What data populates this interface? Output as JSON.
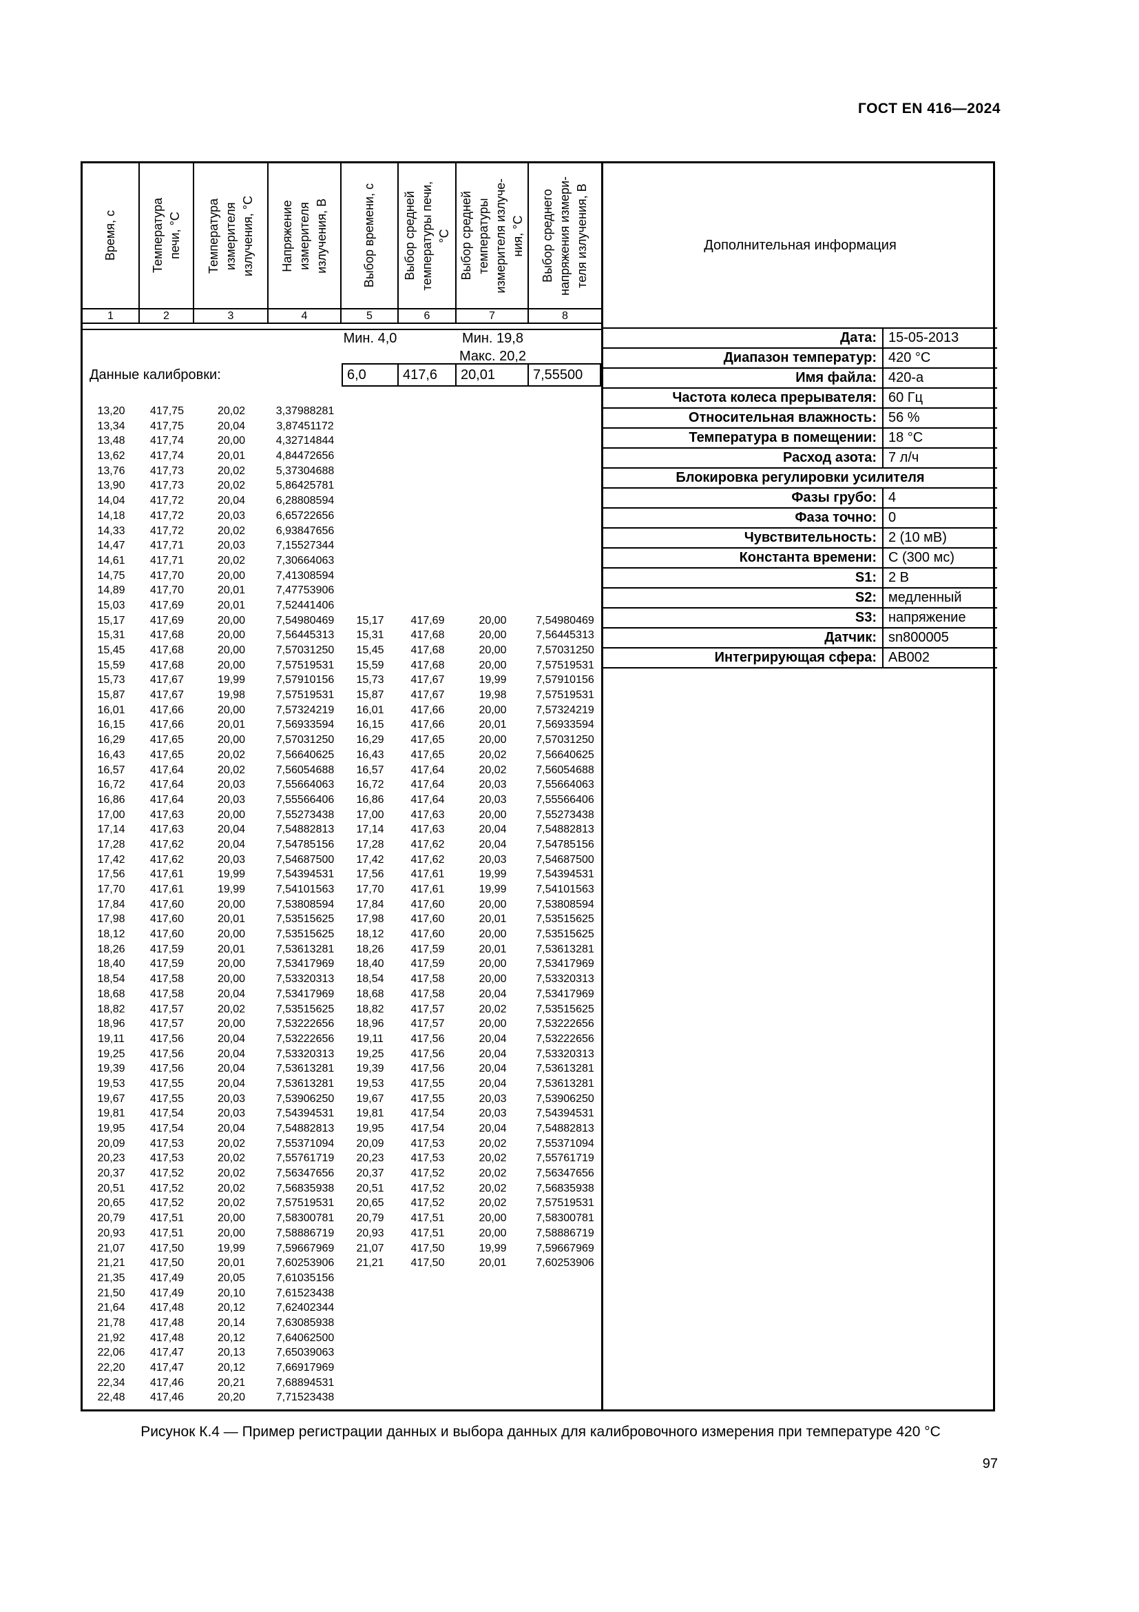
{
  "page": {
    "doc_header": "ГОСТ EN 416—2024",
    "caption": "Рисунок К.4  — Пример регистрации данных и выбора данных для калибровочного измерения при температуре 420 °С",
    "page_number": "97"
  },
  "table": {
    "columns": [
      {
        "num": "1",
        "label": "Время, с"
      },
      {
        "num": "2",
        "label": "Температура\nпечи, °С"
      },
      {
        "num": "3",
        "label": "Температура\nизмерителя\nизлучения, °С"
      },
      {
        "num": "4",
        "label": "Напряжение\nизмерителя\nизлучения, В"
      },
      {
        "num": "5",
        "label": "Выбор времени, с"
      },
      {
        "num": "6",
        "label": "Выбор средней\nтемпературы печи,\n°С"
      },
      {
        "num": "7",
        "label": "Выбор средней\nтемпературы\nизмерителя излуче-\nния, °С"
      },
      {
        "num": "8",
        "label": "Выбор среднего\nнапряжения измери-\nтеля излучения, В"
      }
    ],
    "extra_col_label": "Дополнительная информация",
    "annotations": {
      "min_time": "Мин. 4,0",
      "min_temp": "Мин. 19,8",
      "max_temp": "Макс. 20,2"
    },
    "calibration_label": "Данные калибровки:",
    "calibration_values": [
      "6,0",
      "417,6",
      "20,01",
      "7,55500"
    ],
    "rows": [
      [
        "13,20",
        "417,75",
        "20,02",
        "3,37988281"
      ],
      [
        "13,34",
        "417,75",
        "20,04",
        "3,87451172"
      ],
      [
        "13,48",
        "417,74",
        "20,00",
        "4,32714844"
      ],
      [
        "13,62",
        "417,74",
        "20,01",
        "4,84472656"
      ],
      [
        "13,76",
        "417,73",
        "20,02",
        "5,37304688"
      ],
      [
        "13,90",
        "417,73",
        "20,02",
        "5,86425781"
      ],
      [
        "14,04",
        "417,72",
        "20,04",
        "6,28808594"
      ],
      [
        "14,18",
        "417,72",
        "20,03",
        "6,65722656"
      ],
      [
        "14,33",
        "417,72",
        "20,02",
        "6,93847656"
      ],
      [
        "14,47",
        "417,71",
        "20,03",
        "7,15527344"
      ],
      [
        "14,61",
        "417,71",
        "20,02",
        "7,30664063"
      ],
      [
        "14,75",
        "417,70",
        "20,00",
        "7,41308594"
      ],
      [
        "14,89",
        "417,70",
        "20,01",
        "7,47753906"
      ],
      [
        "15,03",
        "417,69",
        "20,01",
        "7,52441406"
      ],
      [
        "15,17",
        "417,69",
        "20,00",
        "7,54980469",
        "15,17",
        "417,69",
        "20,00",
        "7,54980469"
      ],
      [
        "15,31",
        "417,68",
        "20,00",
        "7,56445313",
        "15,31",
        "417,68",
        "20,00",
        "7,56445313"
      ],
      [
        "15,45",
        "417,68",
        "20,00",
        "7,57031250",
        "15,45",
        "417,68",
        "20,00",
        "7,57031250"
      ],
      [
        "15,59",
        "417,68",
        "20,00",
        "7,57519531",
        "15,59",
        "417,68",
        "20,00",
        "7,57519531"
      ],
      [
        "15,73",
        "417,67",
        "19,99",
        "7,57910156",
        "15,73",
        "417,67",
        "19,99",
        "7,57910156"
      ],
      [
        "15,87",
        "417,67",
        "19,98",
        "7,57519531",
        "15,87",
        "417,67",
        "19,98",
        "7,57519531"
      ],
      [
        "16,01",
        "417,66",
        "20,00",
        "7,57324219",
        "16,01",
        "417,66",
        "20,00",
        "7,57324219"
      ],
      [
        "16,15",
        "417,66",
        "20,01",
        "7,56933594",
        "16,15",
        "417,66",
        "20,01",
        "7,56933594"
      ],
      [
        "16,29",
        "417,65",
        "20,00",
        "7,57031250",
        "16,29",
        "417,65",
        "20,00",
        "7,57031250"
      ],
      [
        "16,43",
        "417,65",
        "20,02",
        "7,56640625",
        "16,43",
        "417,65",
        "20,02",
        "7,56640625"
      ],
      [
        "16,57",
        "417,64",
        "20,02",
        "7,56054688",
        "16,57",
        "417,64",
        "20,02",
        "7,56054688"
      ],
      [
        "16,72",
        "417,64",
        "20,03",
        "7,55664063",
        "16,72",
        "417,64",
        "20,03",
        "7,55664063"
      ],
      [
        "16,86",
        "417,64",
        "20,03",
        "7,55566406",
        "16,86",
        "417,64",
        "20,03",
        "7,55566406"
      ],
      [
        "17,00",
        "417,63",
        "20,00",
        "7,55273438",
        "17,00",
        "417,63",
        "20,00",
        "7,55273438"
      ],
      [
        "17,14",
        "417,63",
        "20,04",
        "7,54882813",
        "17,14",
        "417,63",
        "20,04",
        "7,54882813"
      ],
      [
        "17,28",
        "417,62",
        "20,04",
        "7,54785156",
        "17,28",
        "417,62",
        "20,04",
        "7,54785156"
      ],
      [
        "17,42",
        "417,62",
        "20,03",
        "7,54687500",
        "17,42",
        "417,62",
        "20,03",
        "7,54687500"
      ],
      [
        "17,56",
        "417,61",
        "19,99",
        "7,54394531",
        "17,56",
        "417,61",
        "19,99",
        "7,54394531"
      ],
      [
        "17,70",
        "417,61",
        "19,99",
        "7,54101563",
        "17,70",
        "417,61",
        "19,99",
        "7,54101563"
      ],
      [
        "17,84",
        "417,60",
        "20,00",
        "7,53808594",
        "17,84",
        "417,60",
        "20,00",
        "7,53808594"
      ],
      [
        "17,98",
        "417,60",
        "20,01",
        "7,53515625",
        "17,98",
        "417,60",
        "20,01",
        "7,53515625"
      ],
      [
        "18,12",
        "417,60",
        "20,00",
        "7,53515625",
        "18,12",
        "417,60",
        "20,00",
        "7,53515625"
      ],
      [
        "18,26",
        "417,59",
        "20,01",
        "7,53613281",
        "18,26",
        "417,59",
        "20,01",
        "7,53613281"
      ],
      [
        "18,40",
        "417,59",
        "20,00",
        "7,53417969",
        "18,40",
        "417,59",
        "20,00",
        "7,53417969"
      ],
      [
        "18,54",
        "417,58",
        "20,00",
        "7,53320313",
        "18,54",
        "417,58",
        "20,00",
        "7,53320313"
      ],
      [
        "18,68",
        "417,58",
        "20,04",
        "7,53417969",
        "18,68",
        "417,58",
        "20,04",
        "7,53417969"
      ],
      [
        "18,82",
        "417,57",
        "20,02",
        "7,53515625",
        "18,82",
        "417,57",
        "20,02",
        "7,53515625"
      ],
      [
        "18,96",
        "417,57",
        "20,00",
        "7,53222656",
        "18,96",
        "417,57",
        "20,00",
        "7,53222656"
      ],
      [
        "19,11",
        "417,56",
        "20,04",
        "7,53222656",
        "19,11",
        "417,56",
        "20,04",
        "7,53222656"
      ],
      [
        "19,25",
        "417,56",
        "20,04",
        "7,53320313",
        "19,25",
        "417,56",
        "20,04",
        "7,53320313"
      ],
      [
        "19,39",
        "417,56",
        "20,04",
        "7,53613281",
        "19,39",
        "417,56",
        "20,04",
        "7,53613281"
      ],
      [
        "19,53",
        "417,55",
        "20,04",
        "7,53613281",
        "19,53",
        "417,55",
        "20,04",
        "7,53613281"
      ],
      [
        "19,67",
        "417,55",
        "20,03",
        "7,53906250",
        "19,67",
        "417,55",
        "20,03",
        "7,53906250"
      ],
      [
        "19,81",
        "417,54",
        "20,03",
        "7,54394531",
        "19,81",
        "417,54",
        "20,03",
        "7,54394531"
      ],
      [
        "19,95",
        "417,54",
        "20,04",
        "7,54882813",
        "19,95",
        "417,54",
        "20,04",
        "7,54882813"
      ],
      [
        "20,09",
        "417,53",
        "20,02",
        "7,55371094",
        "20,09",
        "417,53",
        "20,02",
        "7,55371094"
      ],
      [
        "20,23",
        "417,53",
        "20,02",
        "7,55761719",
        "20,23",
        "417,53",
        "20,02",
        "7,55761719"
      ],
      [
        "20,37",
        "417,52",
        "20,02",
        "7,56347656",
        "20,37",
        "417,52",
        "20,02",
        "7,56347656"
      ],
      [
        "20,51",
        "417,52",
        "20,02",
        "7,56835938",
        "20,51",
        "417,52",
        "20,02",
        "7,56835938"
      ],
      [
        "20,65",
        "417,52",
        "20,02",
        "7,57519531",
        "20,65",
        "417,52",
        "20,02",
        "7,57519531"
      ],
      [
        "20,79",
        "417,51",
        "20,00",
        "7,58300781",
        "20,79",
        "417,51",
        "20,00",
        "7,58300781"
      ],
      [
        "20,93",
        "417,51",
        "20,00",
        "7,58886719",
        "20,93",
        "417,51",
        "20,00",
        "7,58886719"
      ],
      [
        "21,07",
        "417,50",
        "19,99",
        "7,59667969",
        "21,07",
        "417,50",
        "19,99",
        "7,59667969"
      ],
      [
        "21,21",
        "417,50",
        "20,01",
        "7,60253906",
        "21,21",
        "417,50",
        "20,01",
        "7,60253906"
      ],
      [
        "21,35",
        "417,49",
        "20,05",
        "7,61035156"
      ],
      [
        "21,50",
        "417,49",
        "20,10",
        "7,61523438"
      ],
      [
        "21,64",
        "417,48",
        "20,12",
        "7,62402344"
      ],
      [
        "21,78",
        "417,48",
        "20,14",
        "7,63085938"
      ],
      [
        "21,92",
        "417,48",
        "20,12",
        "7,64062500"
      ],
      [
        "22,06",
        "417,47",
        "20,13",
        "7,65039063"
      ],
      [
        "22,20",
        "417,47",
        "20,12",
        "7,66917969"
      ],
      [
        "22,34",
        "417,46",
        "20,21",
        "7,68894531"
      ],
      [
        "22,48",
        "417,46",
        "20,20",
        "7,71523438"
      ]
    ]
  },
  "info": {
    "rows": [
      {
        "label": "Дата:",
        "value": "15-05-2013"
      },
      {
        "label": "Диапазон температур:",
        "value": "420 °С"
      },
      {
        "label": "Имя файла:",
        "value": " 420-а"
      },
      {
        "label": "Частота колеса прерывателя:",
        "value": " 60 Гц"
      },
      {
        "label": "Относительная влажность:",
        "value": " 56 %"
      },
      {
        "label": "Температура в помещении:",
        "value": " 18 °С"
      },
      {
        "label": "Расход азота:",
        "value": "7 л/ч"
      },
      {
        "full": true,
        "label": "Блокировка регулировки усилителя"
      },
      {
        "label": "Фазы грубо:",
        "value": "4"
      },
      {
        "label": "Фаза точно:",
        "value": "0"
      },
      {
        "label": "Чувствительность:",
        "value": "2 (10 мВ)"
      },
      {
        "label": "Константа времени:",
        "value": "С (300 мс)"
      },
      {
        "label": "S1:",
        "value": "2 В"
      },
      {
        "label": "S2:",
        "value": "медленный"
      },
      {
        "label": "S3:",
        "value": "напряжение"
      },
      {
        "label": "Датчик:",
        "value": "sn800005"
      },
      {
        "label": "Интегрирующая сфера:",
        "value": "АВ002"
      }
    ]
  }
}
